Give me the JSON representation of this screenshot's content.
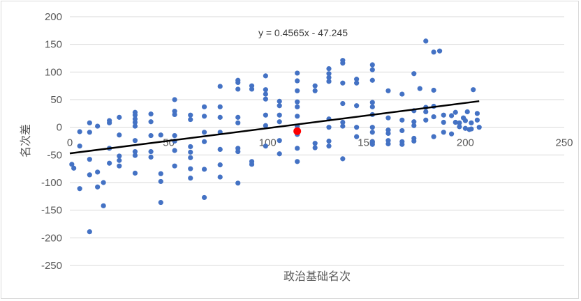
{
  "chart_data": {
    "type": "scatter",
    "title": "",
    "xlabel": "政治基础名次",
    "ylabel": "名次差",
    "xlim": [
      0,
      250
    ],
    "ylim": [
      -250,
      200
    ],
    "x_ticks": [
      "0",
      "50",
      "100",
      "150",
      "200",
      "250"
    ],
    "y_ticks": [
      "200",
      "150",
      "100",
      "50",
      "0",
      "-50",
      "-100",
      "-150",
      "-200",
      "-250"
    ],
    "grid": {
      "horizontal": true,
      "vertical": false
    },
    "legend": "none",
    "colors": {
      "points": "#4472c4",
      "highlight": "#ff0000",
      "trendline": "#000000",
      "grid": "#d9d9d9"
    },
    "trendline": {
      "slope": 0.4565,
      "intercept": -47.245,
      "label": "y = 0.4565x - 47.245"
    },
    "highlight_point": {
      "x": 115,
      "y": -7
    },
    "series": [
      {
        "points": [
          [
            1,
            -67
          ],
          [
            2,
            -74
          ],
          [
            5,
            -8
          ],
          [
            5,
            -34
          ],
          [
            5,
            -111
          ],
          [
            10,
            8
          ],
          [
            10,
            -9
          ],
          [
            10,
            -58
          ],
          [
            10,
            -86
          ],
          [
            10,
            -189
          ],
          [
            14,
            2
          ],
          [
            14,
            -81
          ],
          [
            14,
            -108
          ],
          [
            17,
            -100
          ],
          [
            17,
            -142
          ],
          [
            20,
            12
          ],
          [
            20,
            8
          ],
          [
            20,
            -38
          ],
          [
            20,
            -65
          ],
          [
            25,
            18
          ],
          [
            25,
            -14
          ],
          [
            25,
            -52
          ],
          [
            25,
            -60
          ],
          [
            25,
            -70
          ],
          [
            33,
            27
          ],
          [
            33,
            22
          ],
          [
            33,
            15
          ],
          [
            33,
            9
          ],
          [
            33,
            2
          ],
          [
            33,
            -24
          ],
          [
            33,
            -44
          ],
          [
            33,
            -51
          ],
          [
            33,
            -83
          ],
          [
            41,
            24
          ],
          [
            41,
            10
          ],
          [
            41,
            -15
          ],
          [
            41,
            -44
          ],
          [
            41,
            -54
          ],
          [
            46,
            -14
          ],
          [
            46,
            -84
          ],
          [
            46,
            -98
          ],
          [
            46,
            -136
          ],
          [
            53,
            50
          ],
          [
            53,
            29
          ],
          [
            53,
            23
          ],
          [
            53,
            -15
          ],
          [
            53,
            -25
          ],
          [
            53,
            -42
          ],
          [
            53,
            -70
          ],
          [
            61,
            22
          ],
          [
            61,
            14
          ],
          [
            61,
            -35
          ],
          [
            61,
            -45
          ],
          [
            61,
            -55
          ],
          [
            61,
            -75
          ],
          [
            61,
            -92
          ],
          [
            68,
            37
          ],
          [
            68,
            20
          ],
          [
            68,
            -9
          ],
          [
            68,
            -26
          ],
          [
            68,
            -76
          ],
          [
            68,
            -127
          ],
          [
            76,
            74
          ],
          [
            76,
            37
          ],
          [
            76,
            18
          ],
          [
            76,
            -9
          ],
          [
            76,
            -40
          ],
          [
            76,
            -68
          ],
          [
            76,
            -90
          ],
          [
            85,
            85
          ],
          [
            85,
            81
          ],
          [
            85,
            69
          ],
          [
            85,
            18
          ],
          [
            85,
            8
          ],
          [
            85,
            -38
          ],
          [
            85,
            -44
          ],
          [
            85,
            -101
          ],
          [
            92,
            75
          ],
          [
            92,
            69
          ],
          [
            92,
            -62
          ],
          [
            92,
            -67
          ],
          [
            99,
            93
          ],
          [
            99,
            68
          ],
          [
            99,
            60
          ],
          [
            99,
            51
          ],
          [
            99,
            22
          ],
          [
            99,
            3
          ],
          [
            99,
            -34
          ],
          [
            106,
            47
          ],
          [
            106,
            39
          ],
          [
            106,
            22
          ],
          [
            106,
            10
          ],
          [
            106,
            -24
          ],
          [
            106,
            -48
          ],
          [
            115,
            98
          ],
          [
            115,
            84
          ],
          [
            115,
            66
          ],
          [
            115,
            46
          ],
          [
            115,
            37
          ],
          [
            115,
            20
          ],
          [
            115,
            2
          ],
          [
            115,
            -13
          ],
          [
            115,
            -38
          ],
          [
            115,
            -62
          ],
          [
            124,
            75
          ],
          [
            124,
            66
          ],
          [
            124,
            -29
          ],
          [
            124,
            -37
          ],
          [
            131,
            106
          ],
          [
            131,
            97
          ],
          [
            131,
            90
          ],
          [
            131,
            83
          ],
          [
            131,
            15
          ],
          [
            131,
            0
          ],
          [
            131,
            -25
          ],
          [
            131,
            -34
          ],
          [
            138,
            121
          ],
          [
            138,
            116
          ],
          [
            138,
            80
          ],
          [
            138,
            43
          ],
          [
            138,
            9
          ],
          [
            138,
            2
          ],
          [
            138,
            -57
          ],
          [
            145,
            87
          ],
          [
            145,
            80
          ],
          [
            145,
            39
          ],
          [
            145,
            0
          ],
          [
            145,
            -17
          ],
          [
            153,
            113
          ],
          [
            153,
            104
          ],
          [
            153,
            85
          ],
          [
            153,
            45
          ],
          [
            153,
            37
          ],
          [
            153,
            23
          ],
          [
            153,
            0
          ],
          [
            153,
            -9
          ],
          [
            153,
            -26
          ],
          [
            153,
            -31
          ],
          [
            161,
            66
          ],
          [
            161,
            17
          ],
          [
            161,
            -5
          ],
          [
            161,
            -11
          ],
          [
            161,
            -24
          ],
          [
            161,
            -30
          ],
          [
            168,
            60
          ],
          [
            168,
            13
          ],
          [
            168,
            -6
          ],
          [
            168,
            -26
          ],
          [
            168,
            -31
          ],
          [
            174,
            97
          ],
          [
            174,
            30
          ],
          [
            174,
            10
          ],
          [
            174,
            3
          ],
          [
            174,
            -20
          ],
          [
            174,
            -25
          ],
          [
            177,
            70
          ],
          [
            180,
            156
          ],
          [
            180,
            36
          ],
          [
            180,
            28
          ],
          [
            180,
            13
          ],
          [
            184,
            136
          ],
          [
            184,
            67
          ],
          [
            184,
            38
          ],
          [
            184,
            19
          ],
          [
            184,
            -17
          ],
          [
            187,
            138
          ],
          [
            189,
            22
          ],
          [
            189,
            9
          ],
          [
            189,
            -9
          ],
          [
            193,
            21
          ],
          [
            193,
            -12
          ],
          [
            195,
            27
          ],
          [
            195,
            9
          ],
          [
            197,
            8
          ],
          [
            197,
            1
          ],
          [
            199,
            17
          ],
          [
            200,
            12
          ],
          [
            200,
            -2
          ],
          [
            201,
            28
          ],
          [
            202,
            -4
          ],
          [
            203,
            8
          ],
          [
            203,
            -3
          ],
          [
            204,
            68
          ],
          [
            206,
            25
          ],
          [
            206,
            13
          ],
          [
            207,
            0
          ]
        ]
      }
    ]
  }
}
